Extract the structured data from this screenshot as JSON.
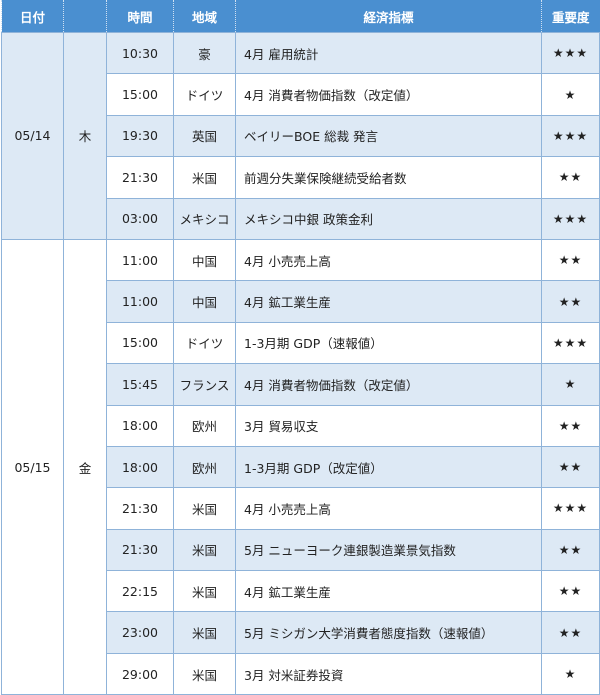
{
  "header": {
    "date": "日付",
    "day": "",
    "time": "時間",
    "region": "地域",
    "indicator": "経済指標",
    "importance": "重要度"
  },
  "colors": {
    "header": "#4a8fd0",
    "row_alt": "#dde9f5",
    "border": "#8fb3d9"
  },
  "groups": [
    {
      "date": "05/14",
      "day": "木",
      "rows": [
        {
          "time": "10:30",
          "region": "豪",
          "indicator": "4月 雇用統計",
          "importance": "★★★"
        },
        {
          "time": "15:00",
          "region": "ドイツ",
          "indicator": "4月 消費者物価指数（改定値）",
          "importance": "★"
        },
        {
          "time": "19:30",
          "region": "英国",
          "indicator": "ベイリーBOE 総裁 発言",
          "importance": "★★★"
        },
        {
          "time": "21:30",
          "region": "米国",
          "indicator": "前週分失業保険継続受給者数",
          "importance": "★★"
        },
        {
          "time": "03:00",
          "region": "メキシコ",
          "indicator": "メキシコ中銀 政策金利",
          "importance": "★★★"
        }
      ]
    },
    {
      "date": "05/15",
      "day": "金",
      "rows": [
        {
          "time": "11:00",
          "region": "中国",
          "indicator": "4月 小売売上高",
          "importance": "★★"
        },
        {
          "time": "11:00",
          "region": "中国",
          "indicator": "4月 鉱工業生産",
          "importance": "★★"
        },
        {
          "time": "15:00",
          "region": "ドイツ",
          "indicator": "1-3月期 GDP（速報値）",
          "importance": "★★★"
        },
        {
          "time": "15:45",
          "region": "フランス",
          "indicator": "4月 消費者物価指数（改定値）",
          "importance": "★"
        },
        {
          "time": "18:00",
          "region": "欧州",
          "indicator": "3月 貿易収支",
          "importance": "★★"
        },
        {
          "time": "18:00",
          "region": "欧州",
          "indicator": "1-3月期 GDP（改定値）",
          "importance": "★★"
        },
        {
          "time": "21:30",
          "region": "米国",
          "indicator": "4月 小売売上高",
          "importance": "★★★"
        },
        {
          "time": "21:30",
          "region": "米国",
          "indicator": "5月 ニューヨーク連銀製造業景気指数",
          "importance": "★★"
        },
        {
          "time": "22:15",
          "region": "米国",
          "indicator": "4月 鉱工業生産",
          "importance": "★★"
        },
        {
          "time": "23:00",
          "region": "米国",
          "indicator": "5月 ミシガン大学消費者態度指数（速報値）",
          "importance": "★★"
        },
        {
          "time": "29:00",
          "region": "米国",
          "indicator": "3月 対米証券投資",
          "importance": "★"
        }
      ]
    }
  ]
}
